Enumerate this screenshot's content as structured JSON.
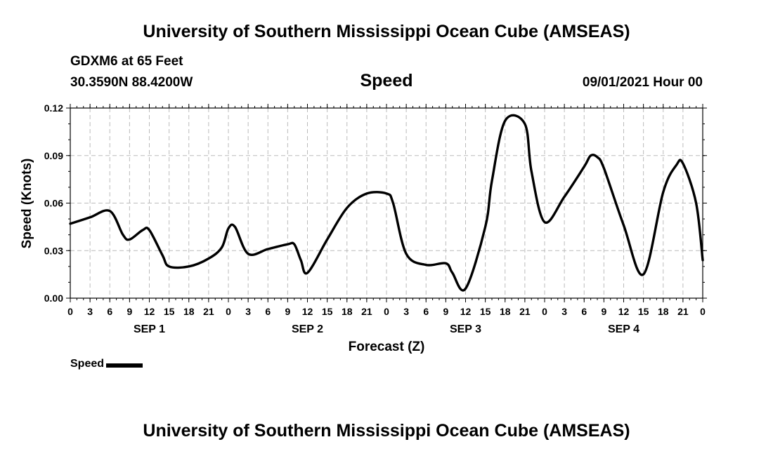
{
  "header": {
    "main_title": "University of Southern Mississippi Ocean Cube (AMSEAS)",
    "station": "GDXM6 at 65 Feet",
    "coords": "30.3590N  88.4200W",
    "datetime": "09/01/2021 Hour 00",
    "footer_title": "University of Southern Mississippi Ocean Cube (AMSEAS)"
  },
  "chart_data": {
    "type": "line",
    "title": "Speed",
    "xlabel": "Forecast (Z)",
    "ylabel": "Speed (Knots)",
    "ylim": [
      0,
      0.12
    ],
    "xlim_hours": [
      0,
      96
    ],
    "yticks": [
      "0.00",
      "0.03",
      "0.06",
      "0.09",
      "0.12"
    ],
    "xtick_labels": [
      "0",
      "3",
      "6",
      "9",
      "12",
      "15",
      "18",
      "21",
      "0",
      "3",
      "6",
      "9",
      "12",
      "15",
      "18",
      "21",
      "0",
      "3",
      "6",
      "9",
      "12",
      "15",
      "18",
      "21",
      "0",
      "3",
      "6",
      "9",
      "12",
      "15",
      "18",
      "21",
      "0"
    ],
    "day_labels": [
      "SEP 1",
      "SEP 2",
      "SEP 3",
      "SEP 4"
    ],
    "grid": true,
    "series": [
      {
        "name": "Speed",
        "color": "#000000",
        "x": [
          0,
          3,
          6,
          8,
          9,
          11,
          12,
          14,
          15,
          18,
          21,
          23,
          24,
          25,
          27,
          30,
          33,
          34,
          35,
          36,
          39,
          42,
          45,
          48,
          49,
          51,
          54,
          57,
          58,
          60,
          63,
          64,
          66,
          69,
          70,
          72,
          75,
          78,
          79,
          80,
          81,
          84,
          87,
          90,
          92,
          93,
          95,
          96
        ],
        "values": [
          0.047,
          0.051,
          0.055,
          0.04,
          0.037,
          0.043,
          0.043,
          0.027,
          0.02,
          0.02,
          0.025,
          0.032,
          0.044,
          0.045,
          0.028,
          0.031,
          0.034,
          0.034,
          0.024,
          0.016,
          0.037,
          0.057,
          0.066,
          0.066,
          0.06,
          0.028,
          0.021,
          0.022,
          0.016,
          0.006,
          0.045,
          0.074,
          0.112,
          0.11,
          0.08,
          0.048,
          0.064,
          0.083,
          0.09,
          0.089,
          0.082,
          0.046,
          0.015,
          0.067,
          0.084,
          0.085,
          0.06,
          0.024
        ]
      }
    ],
    "legend": [
      {
        "label": "Speed"
      }
    ]
  }
}
